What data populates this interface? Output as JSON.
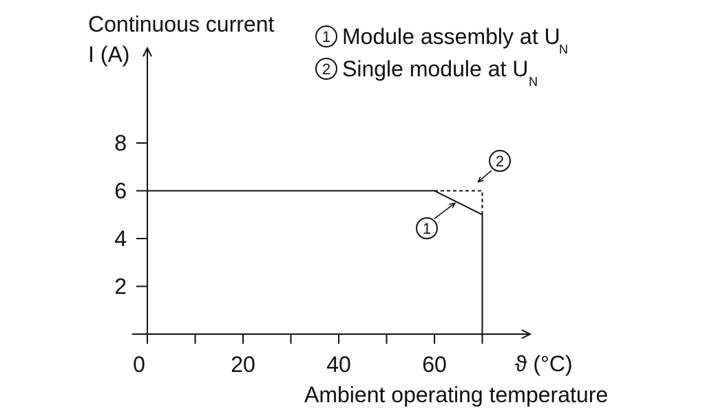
{
  "chart_data": {
    "type": "line",
    "ylabel_line1": "Continuous current",
    "ylabel_line2": "I (A)",
    "xlabel": "Ambient operating temperature",
    "xunit": "ϑ (°C)",
    "xlim": [
      0,
      80
    ],
    "ylim": [
      0,
      10
    ],
    "x_tick_labels": [
      {
        "x": 0,
        "label": "0"
      },
      {
        "x": 20,
        "label": "20"
      },
      {
        "x": 40,
        "label": "40"
      },
      {
        "x": 60,
        "label": "60"
      }
    ],
    "x_ticks": [
      0,
      10,
      20,
      30,
      40,
      50,
      60,
      70
    ],
    "y_ticks": [
      {
        "y": 2,
        "label": "2"
      },
      {
        "y": 4,
        "label": "4"
      },
      {
        "y": 6,
        "label": "6"
      },
      {
        "y": 8,
        "label": "8"
      }
    ],
    "legend": [
      {
        "marker": "①",
        "text": "Module assembly at U",
        "sub": "N"
      },
      {
        "marker": "②",
        "text": "Single module at U",
        "sub": "N"
      }
    ],
    "series": [
      {
        "marker": "①",
        "style": "solid",
        "points": [
          [
            0,
            6
          ],
          [
            60,
            6
          ],
          [
            70,
            5
          ],
          [
            70,
            0
          ]
        ]
      },
      {
        "marker": "②",
        "style": "dashed",
        "points": [
          [
            60,
            6
          ],
          [
            70,
            6
          ],
          [
            70,
            5
          ]
        ]
      }
    ],
    "annotations": [
      {
        "marker": "①",
        "at": [
          64,
          5.6
        ]
      },
      {
        "marker": "②",
        "at": [
          70,
          6.2
        ]
      }
    ],
    "line_color": "#111111",
    "grid": false
  }
}
